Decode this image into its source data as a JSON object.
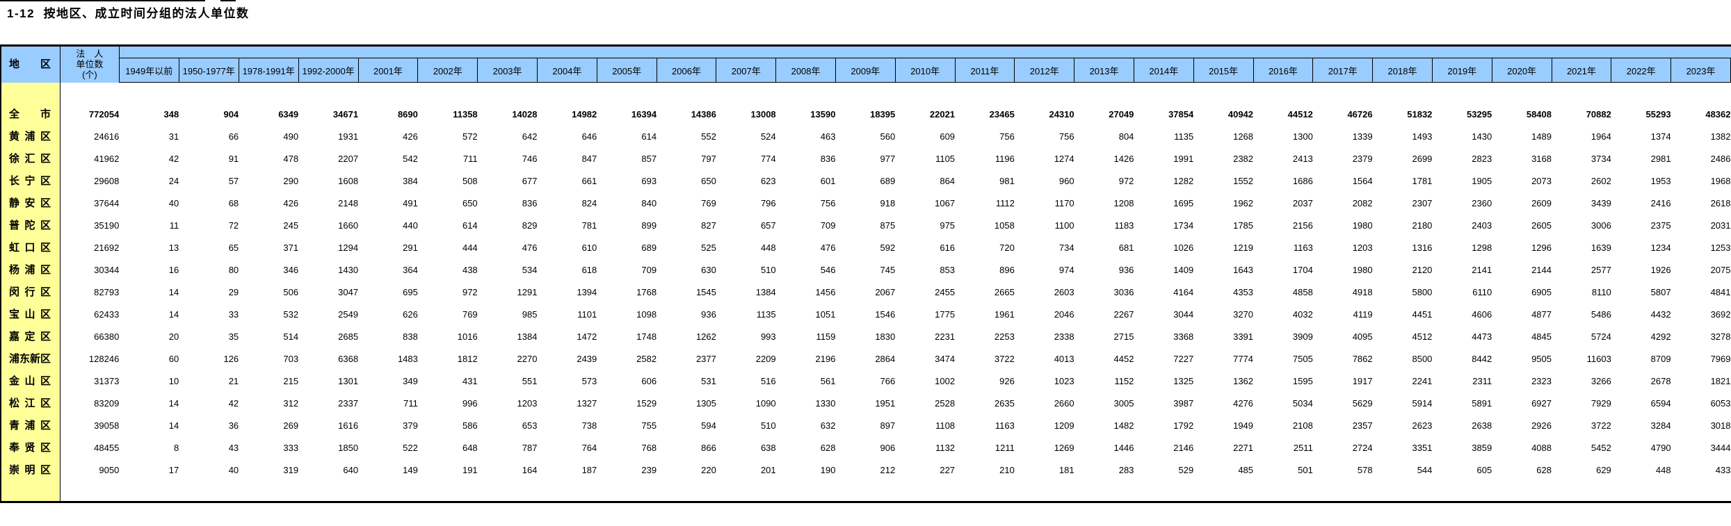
{
  "page": {
    "title": "1-12  按地区、成立时间分组的法人单位数"
  },
  "table": {
    "corner_header": "地区",
    "unit_header_lines": [
      "法　人",
      "单位数",
      "(个)"
    ],
    "period_headers": [
      "1949年以前",
      "1950-1977年",
      "1978-1991年",
      "1992-2000年",
      "2001年",
      "2002年",
      "2003年",
      "2004年",
      "2005年",
      "2006年",
      "2007年",
      "2008年",
      "2009年",
      "2010年",
      "2011年",
      "2012年",
      "2013年",
      "2014年",
      "2015年",
      "2016年",
      "2017年",
      "2018年",
      "2019年",
      "2020年",
      "2021年",
      "2022年",
      "2023年"
    ],
    "colors": {
      "header_bg": "#99CCFF",
      "region_bg": "#FFFF99",
      "border": "#000000"
    },
    "rows": [
      {
        "region": "全市",
        "values": [
          772054,
          348,
          904,
          6349,
          34671,
          8690,
          11358,
          14028,
          14982,
          16394,
          14386,
          13008,
          13590,
          18395,
          22021,
          23465,
          24310,
          27049,
          37854,
          40942,
          44512,
          46726,
          51832,
          53295,
          58408,
          70882,
          55293,
          48362
        ]
      },
      {
        "region": "黄浦区",
        "values": [
          24616,
          31,
          66,
          490,
          1931,
          426,
          572,
          642,
          646,
          614,
          552,
          524,
          463,
          560,
          609,
          756,
          756,
          804,
          1135,
          1268,
          1300,
          1339,
          1493,
          1430,
          1489,
          1964,
          1374,
          1382
        ]
      },
      {
        "region": "徐汇区",
        "values": [
          41962,
          42,
          91,
          478,
          2207,
          542,
          711,
          746,
          847,
          857,
          797,
          774,
          836,
          977,
          1105,
          1196,
          1274,
          1426,
          1991,
          2382,
          2413,
          2379,
          2699,
          2823,
          3168,
          3734,
          2981,
          2486
        ]
      },
      {
        "region": "长宁区",
        "values": [
          29608,
          24,
          57,
          290,
          1608,
          384,
          508,
          677,
          661,
          693,
          650,
          623,
          601,
          689,
          864,
          981,
          960,
          972,
          1282,
          1552,
          1686,
          1564,
          1781,
          1905,
          2073,
          2602,
          1953,
          1968
        ]
      },
      {
        "region": "静安区",
        "values": [
          37644,
          40,
          68,
          426,
          2148,
          491,
          650,
          836,
          824,
          840,
          769,
          796,
          756,
          918,
          1067,
          1112,
          1170,
          1208,
          1695,
          1962,
          2037,
          2082,
          2307,
          2360,
          2609,
          3439,
          2416,
          2618
        ]
      },
      {
        "region": "普陀区",
        "values": [
          35190,
          11,
          72,
          245,
          1660,
          440,
          614,
          829,
          781,
          899,
          827,
          657,
          709,
          875,
          975,
          1058,
          1100,
          1183,
          1734,
          1785,
          2156,
          1980,
          2180,
          2403,
          2605,
          3006,
          2375,
          2031
        ]
      },
      {
        "region": "虹口区",
        "values": [
          21692,
          13,
          65,
          371,
          1294,
          291,
          444,
          476,
          610,
          689,
          525,
          448,
          476,
          592,
          616,
          720,
          734,
          681,
          1026,
          1219,
          1163,
          1203,
          1316,
          1298,
          1296,
          1639,
          1234,
          1253
        ]
      },
      {
        "region": "杨浦区",
        "values": [
          30344,
          16,
          80,
          346,
          1430,
          364,
          438,
          534,
          618,
          709,
          630,
          510,
          546,
          745,
          853,
          896,
          974,
          936,
          1409,
          1643,
          1704,
          1980,
          2120,
          2141,
          2144,
          2577,
          1926,
          2075
        ]
      },
      {
        "region": "闵行区",
        "values": [
          82793,
          14,
          29,
          506,
          3047,
          695,
          972,
          1291,
          1394,
          1768,
          1545,
          1384,
          1456,
          2067,
          2455,
          2665,
          2603,
          3036,
          4164,
          4353,
          4858,
          4918,
          5800,
          6110,
          6905,
          8110,
          5807,
          4841
        ]
      },
      {
        "region": "宝山区",
        "values": [
          62433,
          14,
          33,
          532,
          2549,
          626,
          769,
          985,
          1101,
          1098,
          936,
          1135,
          1051,
          1546,
          1775,
          1961,
          2046,
          2267,
          3044,
          3270,
          4032,
          4119,
          4451,
          4606,
          4877,
          5486,
          4432,
          3692
        ]
      },
      {
        "region": "嘉定区",
        "values": [
          66380,
          20,
          35,
          514,
          2685,
          838,
          1016,
          1384,
          1472,
          1748,
          1262,
          993,
          1159,
          1830,
          2231,
          2253,
          2338,
          2715,
          3368,
          3391,
          3909,
          4095,
          4512,
          4473,
          4845,
          5724,
          4292,
          3278
        ]
      },
      {
        "region": "浦东新区",
        "values": [
          128246,
          60,
          126,
          703,
          6368,
          1483,
          1812,
          2270,
          2439,
          2582,
          2377,
          2209,
          2196,
          2864,
          3474,
          3722,
          4013,
          4452,
          7227,
          7774,
          7505,
          7862,
          8500,
          8442,
          9505,
          11603,
          8709,
          7969
        ]
      },
      {
        "region": "金山区",
        "values": [
          31373,
          10,
          21,
          215,
          1301,
          349,
          431,
          551,
          573,
          606,
          531,
          516,
          561,
          766,
          1002,
          926,
          1023,
          1152,
          1325,
          1362,
          1595,
          1917,
          2241,
          2311,
          2323,
          3266,
          2678,
          1821
        ]
      },
      {
        "region": "松江区",
        "values": [
          83209,
          14,
          42,
          312,
          2337,
          711,
          996,
          1203,
          1327,
          1529,
          1305,
          1090,
          1330,
          1951,
          2528,
          2635,
          2660,
          3005,
          3987,
          4276,
          5034,
          5629,
          5914,
          5891,
          6927,
          7929,
          6594,
          6053
        ]
      },
      {
        "region": "青浦区",
        "values": [
          39058,
          14,
          36,
          269,
          1616,
          379,
          586,
          653,
          738,
          755,
          594,
          510,
          632,
          897,
          1108,
          1163,
          1209,
          1482,
          1792,
          1949,
          2108,
          2357,
          2623,
          2638,
          2926,
          3722,
          3284,
          3018
        ]
      },
      {
        "region": "奉贤区",
        "values": [
          48455,
          8,
          43,
          333,
          1850,
          522,
          648,
          787,
          764,
          768,
          866,
          638,
          628,
          906,
          1132,
          1211,
          1269,
          1446,
          2146,
          2271,
          2511,
          2724,
          3351,
          3859,
          4088,
          5452,
          4790,
          3444
        ]
      },
      {
        "region": "崇明区",
        "values": [
          9050,
          17,
          40,
          319,
          640,
          149,
          191,
          164,
          187,
          239,
          220,
          201,
          190,
          212,
          227,
          210,
          181,
          283,
          529,
          485,
          501,
          578,
          544,
          605,
          628,
          629,
          448,
          433
        ]
      }
    ]
  }
}
